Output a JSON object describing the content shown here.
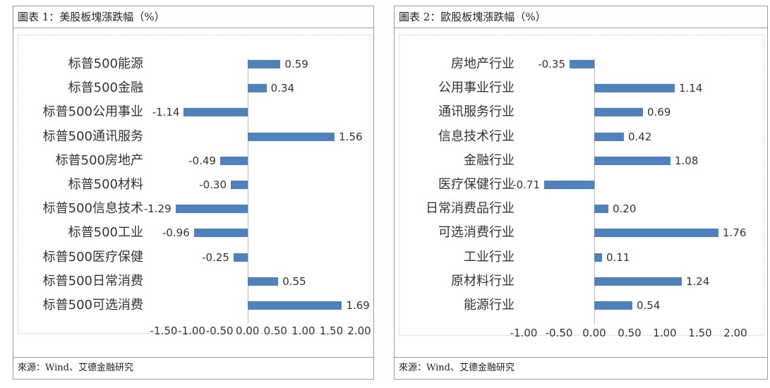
{
  "charts": [
    {
      "title": "圖表 1：美股板塊漲跌幅（%）",
      "source": "來源：Wind、艾德金融研究",
      "color": "#4f81bd"
    },
    {
      "title": "圖表 2：歐股板塊漲跌幅（%）",
      "source": "來源：Wind、艾德金融研究",
      "color": "#4f81bd"
    }
  ],
  "chart_data": [
    {
      "type": "bar",
      "orientation": "horizontal",
      "title": "圖表 1：美股板塊漲跌幅（%）",
      "categories": [
        "标普500能源",
        "标普500金融",
        "标普500公用事业",
        "标普500通讯服务",
        "标普500房地产",
        "标普500材料",
        "标普500信息技术",
        "标普500工业",
        "标普500医疗保健",
        "标普500日常消费",
        "标普500可选消费"
      ],
      "values": [
        0.59,
        0.34,
        -1.14,
        1.56,
        -0.49,
        -0.3,
        -1.29,
        -0.96,
        -0.25,
        0.55,
        1.69
      ],
      "data_labels": [
        "0.59",
        "0.34",
        "-1.14",
        "1.56",
        "-0.49",
        "-0.30",
        "-1.29",
        "-0.96",
        "-0.25",
        "0.55",
        "1.69"
      ],
      "xlim": [
        -1.5,
        2.0
      ],
      "ticks": [
        "-1.50",
        "-1.00",
        "-0.50",
        "0.00",
        "0.50",
        "1.00",
        "1.50",
        "2.00"
      ],
      "grid": false,
      "legend": "none"
    },
    {
      "type": "bar",
      "orientation": "horizontal",
      "title": "圖表 2：歐股板塊漲跌幅（%）",
      "categories": [
        "房地产行业",
        "公用事业行业",
        "通讯服务行业",
        "信息技术行业",
        "金融行业",
        "医疗保健行业",
        "日常消费品行业",
        "可选消费行业",
        "工业行业",
        "原材料行业",
        "能源行业"
      ],
      "values": [
        -0.35,
        1.14,
        0.69,
        0.42,
        1.08,
        -0.71,
        0.2,
        1.76,
        0.11,
        1.24,
        0.54
      ],
      "data_labels": [
        "-0.35",
        "1.14",
        "0.69",
        "0.42",
        "1.08",
        "-0.71",
        "0.20",
        "1.76",
        "0.11",
        "1.24",
        "0.54"
      ],
      "xlim": [
        -1.0,
        2.0
      ],
      "ticks": [
        "-1.00",
        "-0.50",
        "0.00",
        "0.50",
        "1.00",
        "1.50",
        "2.00"
      ],
      "grid": false,
      "legend": "none"
    }
  ]
}
